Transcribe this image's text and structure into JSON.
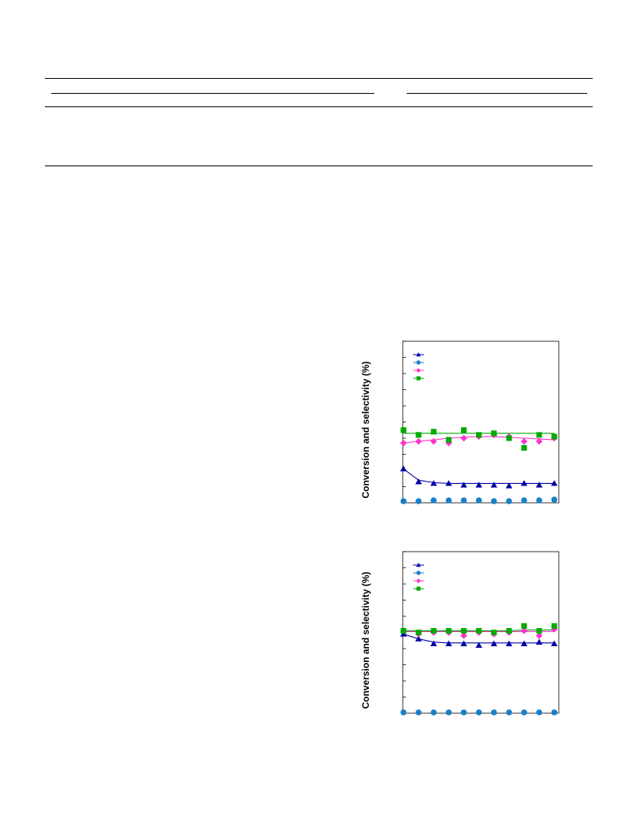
{
  "table": {
    "rule_count": 5
  },
  "chart_data": [
    {
      "type": "scatter",
      "title": "",
      "xlabel": "",
      "ylabel": "Conversion and selectivity (%)",
      "ylim": [
        0,
        100
      ],
      "grid": false,
      "legend": "top-left",
      "x": [
        1,
        2,
        3,
        4,
        5,
        6,
        7,
        8,
        9,
        10,
        11
      ],
      "series": [
        {
          "marker": "triangle",
          "color": "#0000a8",
          "values": [
            21,
            13,
            12,
            12,
            11,
            11,
            11,
            10.5,
            12,
            11,
            12
          ]
        },
        {
          "marker": "circle",
          "color": "#1a7fc8",
          "values": [
            1,
            1,
            1.5,
            1.5,
            1.5,
            1.5,
            1,
            1,
            1.5,
            1.5,
            2
          ]
        },
        {
          "marker": "diamond",
          "color": "#ff33cc",
          "values": [
            37,
            38,
            38,
            37,
            40,
            41,
            42,
            41,
            38,
            38,
            40
          ]
        },
        {
          "marker": "square",
          "color": "#00aa00",
          "values": [
            45,
            42,
            44,
            39,
            45,
            42,
            43,
            40,
            34,
            42,
            41
          ]
        }
      ],
      "fits": [
        {
          "color": "#0000a8",
          "values": [
            21,
            14,
            12.5,
            12,
            12,
            12,
            12,
            12,
            12,
            12,
            12
          ]
        },
        {
          "color": "#ff33cc",
          "values": [
            37,
            38,
            39,
            40,
            40.5,
            41,
            41,
            40.5,
            40,
            39.5,
            39
          ]
        },
        {
          "color": "#00aa00",
          "values": [
            43,
            43,
            43,
            43,
            43,
            43,
            43,
            43,
            43,
            43,
            43
          ]
        }
      ]
    },
    {
      "type": "scatter",
      "title": "",
      "xlabel": "",
      "ylabel": "Conversion and selectivity (%)",
      "ylim": [
        0,
        100
      ],
      "grid": false,
      "legend": "top-left",
      "x": [
        1,
        2,
        3,
        4,
        5,
        6,
        7,
        8,
        9,
        10,
        11
      ],
      "series": [
        {
          "marker": "triangle",
          "color": "#0000a8",
          "values": [
            49,
            46,
            43,
            43,
            43,
            42,
            43,
            43,
            43,
            44,
            43
          ]
        },
        {
          "marker": "circle",
          "color": "#1a7fc8",
          "values": [
            0.5,
            0.5,
            0.5,
            0.5,
            0.5,
            0.5,
            0.5,
            0.5,
            0.5,
            0.5,
            0.5
          ]
        },
        {
          "marker": "diamond",
          "color": "#ff33cc",
          "values": [
            51,
            49,
            50,
            50,
            48,
            50,
            49,
            50,
            51,
            48,
            52
          ]
        },
        {
          "marker": "square",
          "color": "#00aa00",
          "values": [
            51,
            50,
            51,
            51,
            51,
            51,
            50,
            51,
            54,
            51,
            54
          ]
        }
      ],
      "fits": [
        {
          "color": "#0000a8",
          "values": [
            49,
            46,
            44,
            43.5,
            43.5,
            43.5,
            43.5,
            43.5,
            43.5,
            43.5,
            43.5
          ]
        },
        {
          "color": "#ff33cc",
          "values": [
            50.5,
            50.5,
            50.5,
            50.5,
            50.5,
            50.5,
            50.5,
            50.5,
            50.5,
            50.5,
            50.5
          ]
        },
        {
          "color": "#00aa00",
          "values": [
            51,
            51,
            51,
            51,
            51,
            51,
            51,
            51,
            51.5,
            51.5,
            51.5
          ]
        }
      ]
    }
  ]
}
